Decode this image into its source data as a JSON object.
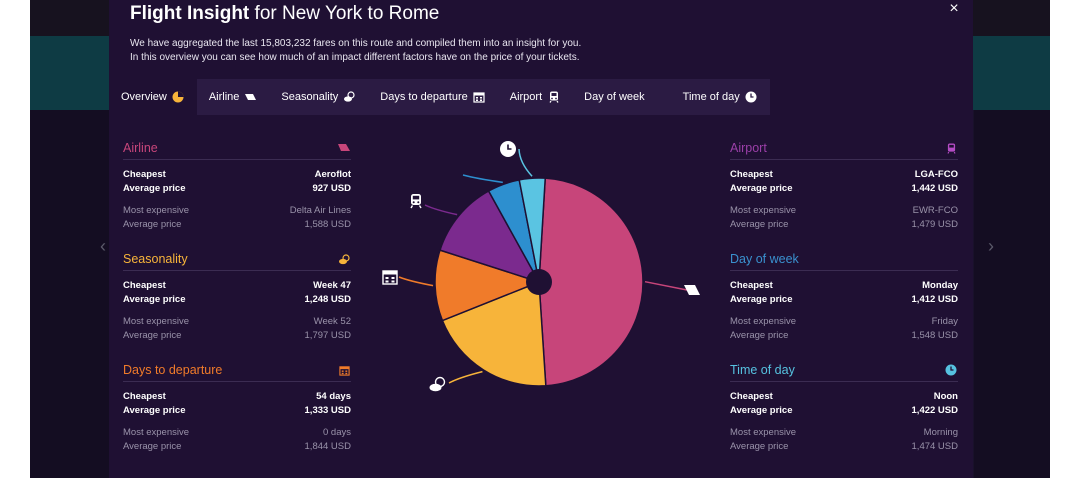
{
  "modal": {
    "title_bold": "Flight Insight",
    "title_rest": "for New York to Rome",
    "desc_line1": "We have aggregated the last 15,803,232 fares on this route and compiled them into an insight for you.",
    "desc_line2": "In this overview you can see how much of an impact different factors have on the price of your tickets.",
    "close": "×"
  },
  "tabs": [
    {
      "label": "Overview",
      "icon": "pie-chart-icon"
    },
    {
      "label": "Airline",
      "icon": "airplane-icon"
    },
    {
      "label": "Seasonality",
      "icon": "weather-icon"
    },
    {
      "label": "Days to departure",
      "icon": "calendar-icon"
    },
    {
      "label": "Airport",
      "icon": "train-icon"
    },
    {
      "label": "Day of week",
      "icon": ""
    },
    {
      "label": "Time of day",
      "icon": "clock-icon"
    }
  ],
  "labels": {
    "cheapest": "Cheapest",
    "average_price": "Average price",
    "most_expensive": "Most expensive"
  },
  "sections": {
    "airline": {
      "title": "Airline",
      "color": "#c7457a",
      "cheapest": "Aeroflot",
      "cheapest_price": "927 USD",
      "expensive": "Delta Air Lines",
      "expensive_price": "1,588 USD"
    },
    "seasonality": {
      "title": "Seasonality",
      "color": "#f7b43a",
      "cheapest": "Week 47",
      "cheapest_price": "1,248 USD",
      "expensive": "Week 52",
      "expensive_price": "1,797 USD"
    },
    "days": {
      "title": "Days to departure",
      "color": "#f07b2a",
      "cheapest": "54 days",
      "cheapest_price": "1,333 USD",
      "expensive": "0 days",
      "expensive_price": "1,844 USD"
    },
    "airport": {
      "title": "Airport",
      "color": "#9b3fa8",
      "cheapest": "LGA-FCO",
      "cheapest_price": "1,442 USD",
      "expensive": "EWR-FCO",
      "expensive_price": "1,479 USD"
    },
    "dow": {
      "title": "Day of week",
      "color": "#3a91cf",
      "cheapest": "Monday",
      "cheapest_price": "1,412 USD",
      "expensive": "Friday",
      "expensive_price": "1,548 USD"
    },
    "tod": {
      "title": "Time of day",
      "color": "#56c2e0",
      "cheapest": "Noon",
      "cheapest_price": "1,422 USD",
      "expensive": "Morning",
      "expensive_price": "1,474 USD"
    }
  },
  "chart_data": {
    "type": "pie",
    "slices": [
      {
        "name": "Airline",
        "value": 48,
        "color": "#c7457a"
      },
      {
        "name": "Seasonality",
        "value": 20,
        "color": "#f7b43a"
      },
      {
        "name": "Days to departure",
        "value": 11,
        "color": "#f07b2a"
      },
      {
        "name": "Airport",
        "value": 12,
        "color": "#7b2a8e"
      },
      {
        "name": "Day of week",
        "value": 5,
        "color": "#2d8fcf"
      },
      {
        "name": "Time of day",
        "value": 4,
        "color": "#5ac4e2"
      }
    ]
  }
}
